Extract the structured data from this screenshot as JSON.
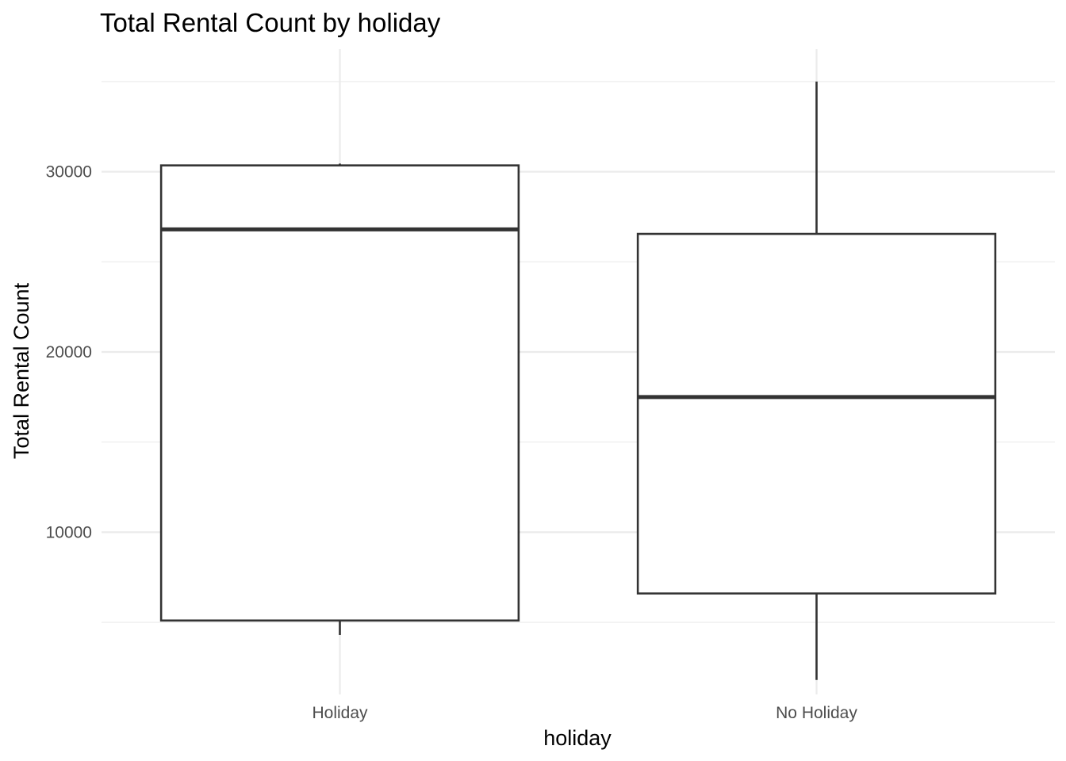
{
  "chart_data": {
    "type": "boxplot",
    "title": "Total Rental Count by holiday",
    "xlabel": "holiday",
    "ylabel": "Total Rental Count",
    "categories": [
      "Holiday",
      "No Holiday"
    ],
    "boxes": [
      {
        "category": "Holiday",
        "whisker_low": 4300,
        "q1": 5100,
        "median": 26800,
        "q3": 30350,
        "whisker_high": 30450
      },
      {
        "category": "No Holiday",
        "whisker_low": 1800,
        "q1": 6600,
        "median": 17500,
        "q3": 26550,
        "whisker_high": 35000
      }
    ],
    "ylim": [
      1000,
      36800
    ],
    "yticks": [
      10000,
      20000,
      30000
    ],
    "yticks_minor": [
      5000,
      15000,
      25000,
      35000
    ],
    "ytick_labels": [
      "10000",
      "20000",
      "30000"
    ],
    "grid": true,
    "legend": "none",
    "colors": {
      "box_fill": "#ffffff",
      "box_stroke": "#333333",
      "grid": "#ebebeb",
      "tick_text": "#4d4d4d"
    }
  }
}
